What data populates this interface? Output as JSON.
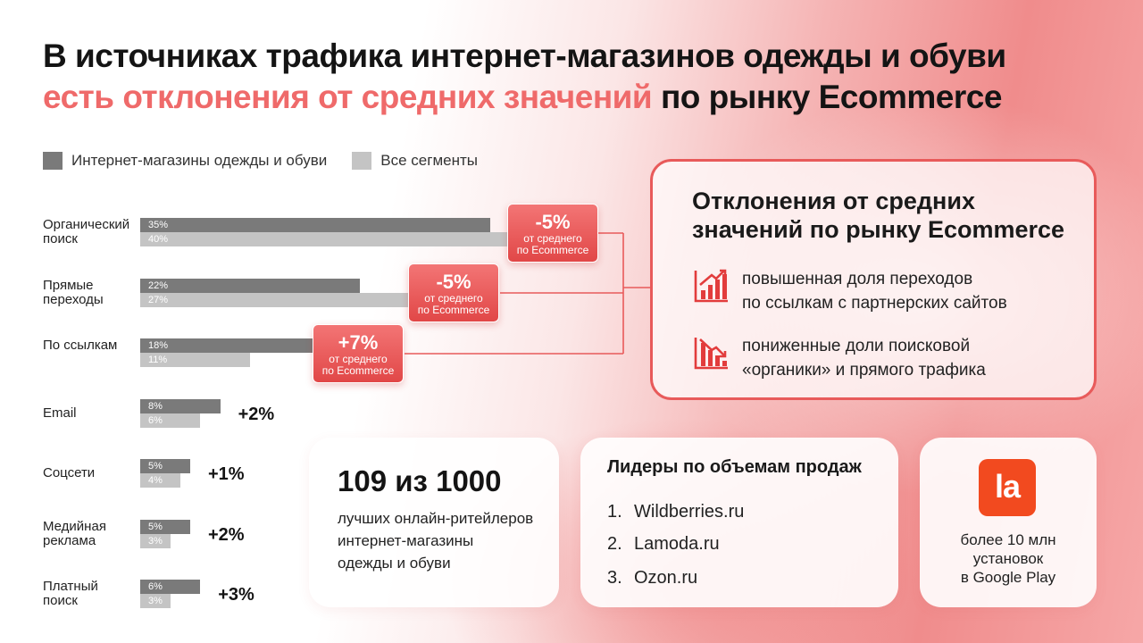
{
  "title": {
    "line1": "В источниках трафика интернет-магазинов одежды и обуви",
    "line2_highlight": "есть отклонения от средних значений",
    "line2_rest": " по рынку Ecommerce"
  },
  "colors": {
    "accent": "#e85a5a",
    "series_clothing": "#7a7a7a",
    "series_all": "#c4c4c4"
  },
  "chart_data": {
    "type": "bar",
    "orientation": "horizontal",
    "unit": "%",
    "categories": [
      "Органический поиск",
      "Прямые переходы",
      "По ссылкам",
      "Email",
      "Соцсети",
      "Медийная реклама",
      "Платный поиск"
    ],
    "series": [
      {
        "name": "Интернет-магазины одежды и обуви",
        "values": [
          35,
          22,
          18,
          8,
          5,
          5,
          6
        ],
        "labels": [
          "35%",
          "22%",
          "18%",
          "8%",
          "5%",
          "5%",
          "6%"
        ]
      },
      {
        "name": "Все сегменты",
        "values": [
          40,
          27,
          11,
          6,
          4,
          3,
          3
        ],
        "labels": [
          "40%",
          "27%",
          "11%",
          "6%",
          "4%",
          "3%",
          "3%"
        ]
      }
    ],
    "deltas": [
      "-5%",
      "-5%",
      "+7%",
      "+2%",
      "+1%",
      "+2%",
      "+3%"
    ],
    "callout_caption_1": "от среднего",
    "callout_caption_2": "по Ecommerce"
  },
  "deviation_panel": {
    "title": "Отклонения от средних значений по рынку Ecommerce",
    "items": [
      {
        "icon": "chart-up-icon",
        "line1": "повышенная доля переходов",
        "line2": "по ссылкам с партнерских сайтов"
      },
      {
        "icon": "chart-down-icon",
        "line1": "пониженные доли поисковой",
        "line2": "«органики» и прямого трафика"
      }
    ]
  },
  "rank_card": {
    "big": "109 из 1000",
    "line1": "лучших онлайн-ритейлеров",
    "line2": "интернет-магазины",
    "line3": "одежды и обуви"
  },
  "leaders_card": {
    "title": "Лидеры по объемам продаж",
    "items": [
      {
        "num": "1.",
        "name": "Wildberries.ru"
      },
      {
        "num": "2.",
        "name": "Lamoda.ru"
      },
      {
        "num": "3.",
        "name": "Ozon.ru"
      }
    ]
  },
  "app_card": {
    "logo_text": "la",
    "line1": "более 10 млн",
    "line2": "установок",
    "line3": "в Google Play"
  }
}
